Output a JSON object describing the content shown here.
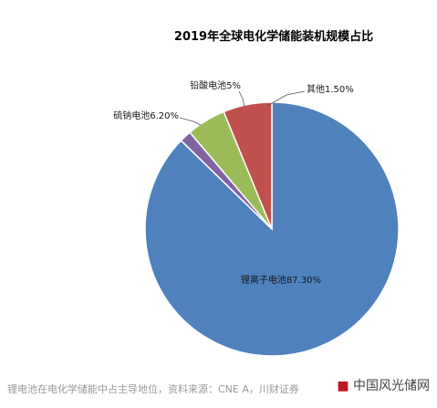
{
  "chart_data": {
    "type": "pie",
    "title": "2019年全球电化学储能装机规模占比",
    "categories": [
      "锂离子电池",
      "其他",
      "铅酸电池",
      "硫钠电池"
    ],
    "values": [
      87.3,
      1.5,
      5.0,
      6.2
    ],
    "labels": [
      "锂离子电池87.30%",
      "其他1.50%",
      "铅酸电池5%",
      "硫钠电池6.20%"
    ],
    "colors": [
      "#4f81bd",
      "#8064a2",
      "#9bbb59",
      "#c0504d"
    ],
    "start_angle_deg": 0,
    "direction": "clockwise",
    "legend": "none"
  },
  "caption": "锂电池在电化学储能中占主导地位，资料来源：CNE A，川财证券",
  "watermark": {
    "mark": "■",
    "text": "中国风光储网"
  }
}
